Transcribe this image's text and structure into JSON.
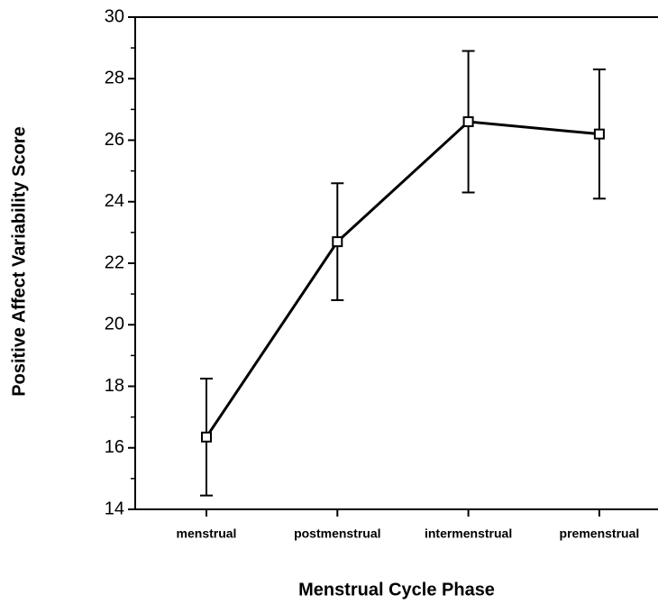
{
  "chart_data": {
    "type": "line",
    "x_label": "Menstrual   Cycle   Phase",
    "y_label": "Positive Affect Variability Score",
    "categories": [
      "menstrual",
      "postmenstrual",
      "intermenstrual",
      "premenstrual"
    ],
    "series": [
      {
        "name": "Positive Affect Variability",
        "color": "#000000",
        "values": [
          16.35,
          22.7,
          26.6,
          26.2
        ],
        "errors": [
          1.9,
          1.9,
          2.3,
          2.1
        ]
      }
    ],
    "ylim": [
      14,
      30
    ],
    "yticks": [
      14,
      16,
      18,
      20,
      22,
      24,
      26,
      28,
      30
    ],
    "yticks_minor": [
      15,
      17,
      19,
      21,
      23,
      25,
      27,
      29
    ]
  }
}
